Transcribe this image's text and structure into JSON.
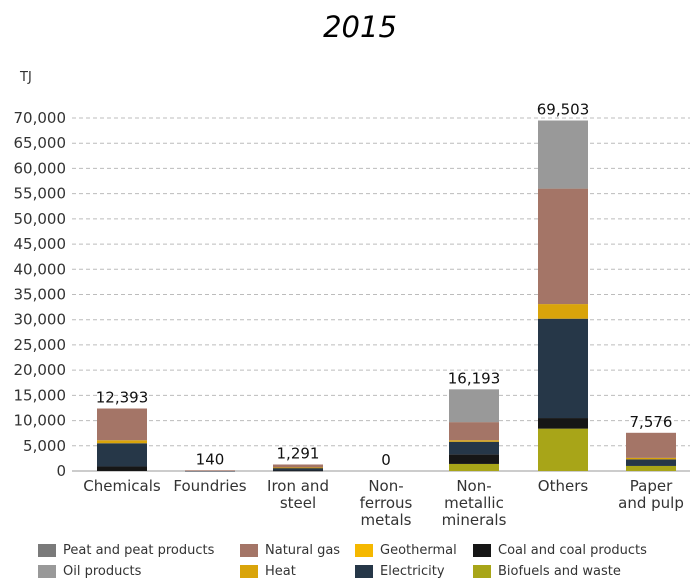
{
  "chart_data": {
    "type": "bar",
    "stacked": true,
    "title": "2015",
    "ylabel": "TJ",
    "ylim": [
      0,
      70000
    ],
    "yticks": [
      "0",
      "5,000",
      "10,000",
      "15,000",
      "20,000",
      "25,000",
      "30,000",
      "35,000",
      "40,000",
      "45,000",
      "50,000",
      "55,000",
      "60,000",
      "65,000",
      "70,000"
    ],
    "ytick_values": [
      0,
      5000,
      10000,
      15000,
      20000,
      25000,
      30000,
      35000,
      40000,
      45000,
      50000,
      55000,
      60000,
      65000,
      70000
    ],
    "grid": true,
    "legend_position": "bottom",
    "categories": [
      [
        "Chemicals"
      ],
      [
        "Foundries"
      ],
      [
        "Iron and",
        "steel"
      ],
      [
        "Non-",
        "ferrous",
        "metals"
      ],
      [
        "Non-",
        "metallic",
        "minerals"
      ],
      [
        "Others"
      ],
      [
        "Paper",
        "and pulp"
      ]
    ],
    "totals": [
      "12,393",
      "140",
      "1,291",
      "0",
      "16,193",
      "69,503",
      "7,576"
    ],
    "series": [
      {
        "name": "Biofuels and waste",
        "color": "#a8a518",
        "values": [
          0,
          0,
          0,
          0,
          1400,
          8400,
          1000
        ]
      },
      {
        "name": "Coal and coal products",
        "color": "#161616",
        "values": [
          900,
          0,
          100,
          0,
          1900,
          2100,
          0
        ]
      },
      {
        "name": "Electricity",
        "color": "#263748",
        "values": [
          4600,
          40,
          550,
          0,
          2500,
          19700,
          1300
        ]
      },
      {
        "name": "Heat",
        "color": "#d9a40a",
        "values": [
          600,
          0,
          50,
          0,
          300,
          2900,
          300
        ]
      },
      {
        "name": "Geothermal",
        "color": "#f5b800",
        "values": [
          0,
          0,
          0,
          0,
          0,
          0,
          0
        ]
      },
      {
        "name": "Natural gas",
        "color": "#a47567",
        "values": [
          6293,
          100,
          591,
          0,
          3593,
          22900,
          4976
        ]
      },
      {
        "name": "Oil products",
        "color": "#999999",
        "values": [
          0,
          0,
          0,
          0,
          6500,
          13503,
          0
        ]
      },
      {
        "name": "Peat and peat products",
        "color": "#7a7a7a",
        "values": [
          0,
          0,
          0,
          0,
          0,
          0,
          0
        ]
      }
    ]
  },
  "legend": {
    "rows": [
      [
        {
          "label": "Peat and peat products",
          "color": "#7a7a7a"
        },
        {
          "label": "Natural gas",
          "color": "#a47567"
        },
        {
          "label": "Geothermal",
          "color": "#f5b800"
        },
        {
          "label": "Coal and coal products",
          "color": "#161616"
        }
      ],
      [
        {
          "label": "Oil products",
          "color": "#999999"
        },
        {
          "label": "Heat",
          "color": "#d9a40a"
        },
        {
          "label": "Electricity",
          "color": "#263748"
        },
        {
          "label": "Biofuels and waste",
          "color": "#a8a518"
        }
      ]
    ]
  }
}
